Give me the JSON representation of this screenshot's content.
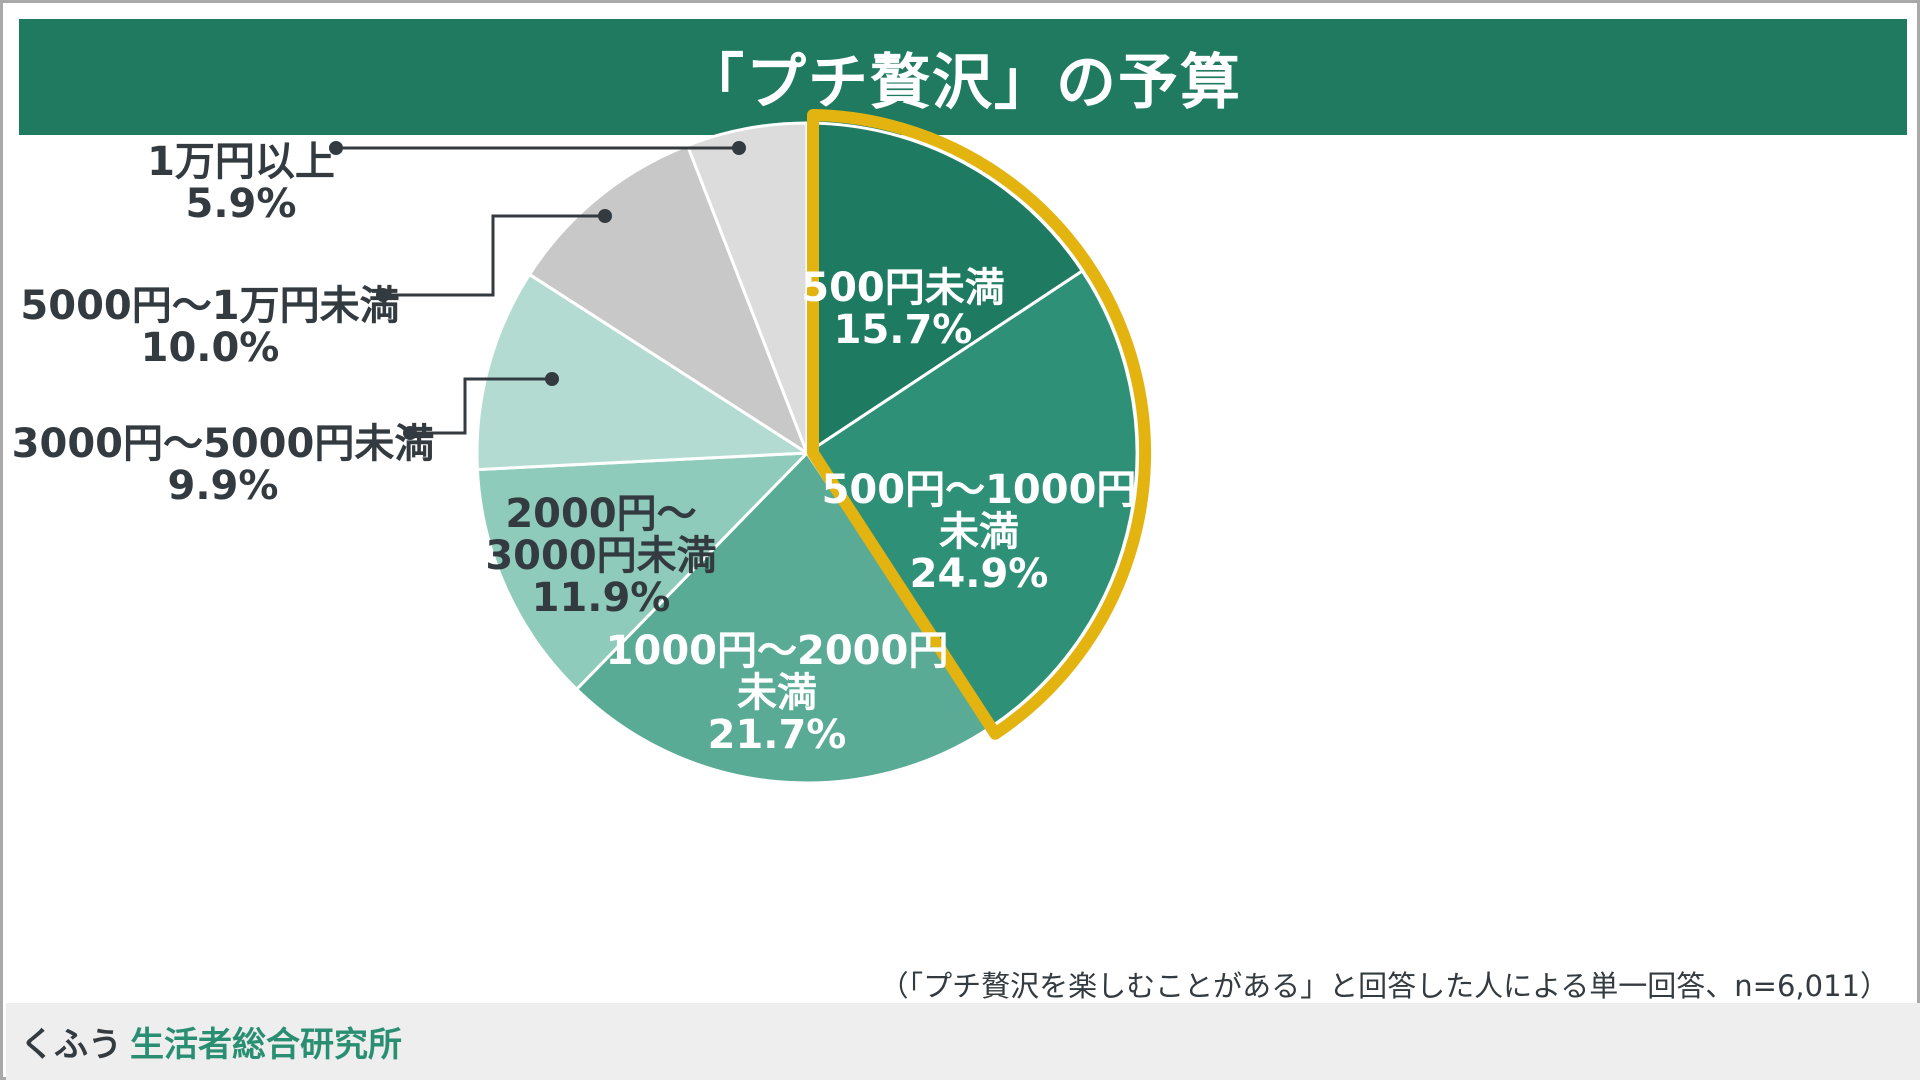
{
  "title": "「プチ贅沢」の予算",
  "footnote": "（「プチ贅沢を楽しむことがある」と回答した人による単一回答、n=6,011）",
  "footer": {
    "brand": "くふう",
    "org": "生活者総合研究所"
  },
  "colors": {
    "title_bg": "#207a60",
    "highlight_border": "#e3b30f",
    "text_dark": "#333b40"
  },
  "chart_data": {
    "type": "pie",
    "title": "「プチ贅沢」の予算",
    "start": "12 o'clock",
    "direction": "clockwise",
    "highlighted": [
      "500円未満",
      "500円〜1000円未満"
    ],
    "slices": [
      {
        "label": "500円未満",
        "lines": [
          "500円未満"
        ],
        "value": 15.7,
        "value_label": "15.7%",
        "color": "#1f7a62",
        "label_color": "#ffffff",
        "label_pos": "inside"
      },
      {
        "label": "500円〜1000円未満",
        "lines": [
          "500円〜1000円",
          "未満"
        ],
        "value": 24.9,
        "value_label": "24.9%",
        "color": "#2f9078",
        "label_color": "#ffffff",
        "label_pos": "inside"
      },
      {
        "label": "1000円〜2000円未満",
        "lines": [
          "1000円〜2000円",
          "未満"
        ],
        "value": 21.7,
        "value_label": "21.7%",
        "color": "#5aab95",
        "label_color": "#ffffff",
        "label_pos": "inside"
      },
      {
        "label": "2000円〜3000円未満",
        "lines": [
          "2000円〜",
          "3000円未満"
        ],
        "value": 11.9,
        "value_label": "11.9%",
        "color": "#8fcbbb",
        "label_color": "#333b40",
        "label_pos": "inside"
      },
      {
        "label": "3000円〜5000円未満",
        "lines": [
          "3000円〜5000円未満"
        ],
        "value": 9.9,
        "value_label": "9.9%",
        "color": "#b3dbd2",
        "label_color": "#333b40",
        "label_pos": "outside"
      },
      {
        "label": "5000円〜1万円未満",
        "lines": [
          "5000円〜1万円未満"
        ],
        "value": 10.0,
        "value_label": "10.0%",
        "color": "#c8c8c8",
        "label_color": "#333b40",
        "label_pos": "outside"
      },
      {
        "label": "1万円以上",
        "lines": [
          "1万円以上"
        ],
        "value": 5.9,
        "value_label": "5.9%",
        "color": "#dcdcdc",
        "label_color": "#333b40",
        "label_pos": "outside"
      }
    ]
  }
}
